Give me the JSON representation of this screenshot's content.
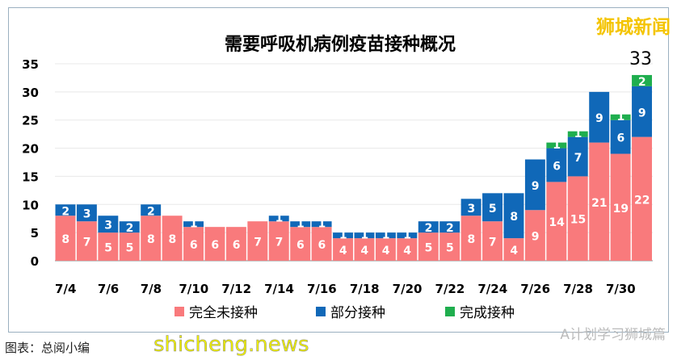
{
  "brand": "狮城新闻",
  "watermark": "shicheng.news",
  "footer": "图表：总阅小编",
  "wechat": "A计划学习狮城篇",
  "colors": {
    "unvaccinated": "#f97a7c",
    "partial": "#1068b8",
    "full": "#1fae4e"
  },
  "chart_data": {
    "type": "bar",
    "stacked": true,
    "title": "需要呼吸机病例疫苗接种概况",
    "categories": [
      "7/4",
      "7/5",
      "7/6",
      "7/7",
      "7/8",
      "7/9",
      "7/10",
      "7/11",
      "7/12",
      "7/13",
      "7/14",
      "7/15",
      "7/16",
      "7/17",
      "7/18",
      "7/19",
      "7/20",
      "7/21",
      "7/22",
      "7/23",
      "7/24",
      "7/25",
      "7/26",
      "7/27",
      "7/28",
      "7/29",
      "7/30",
      "7/31"
    ],
    "tick_labels": [
      "7/4",
      "7/6",
      "7/8",
      "7/10",
      "7/12",
      "7/14",
      "7/16",
      "7/18",
      "7/20",
      "7/22",
      "7/24",
      "7/26",
      "7/28",
      "7/30"
    ],
    "series": [
      {
        "name": "完全未接种",
        "values": [
          8,
          7,
          5,
          5,
          8,
          8,
          6,
          6,
          6,
          7,
          7,
          6,
          6,
          4,
          4,
          4,
          4,
          5,
          5,
          8,
          7,
          4,
          9,
          14,
          15,
          21,
          19,
          22
        ]
      },
      {
        "name": "部分接种",
        "values": [
          2,
          3,
          3,
          2,
          2,
          0,
          1,
          0,
          0,
          0,
          1,
          1,
          1,
          1,
          1,
          1,
          1,
          2,
          2,
          3,
          5,
          8,
          9,
          6,
          7,
          9,
          6,
          9
        ]
      },
      {
        "name": "完成接种",
        "values": [
          0,
          0,
          0,
          0,
          0,
          0,
          0,
          0,
          0,
          0,
          0,
          0,
          0,
          0,
          0,
          0,
          0,
          0,
          0,
          0,
          0,
          0,
          0,
          1,
          1,
          0,
          1,
          2
        ]
      }
    ],
    "annotation": "33",
    "yticks": [
      0,
      5,
      10,
      15,
      20,
      25,
      30,
      35
    ],
    "ylim": [
      0,
      35
    ],
    "grid": true,
    "legend": "bottom"
  }
}
